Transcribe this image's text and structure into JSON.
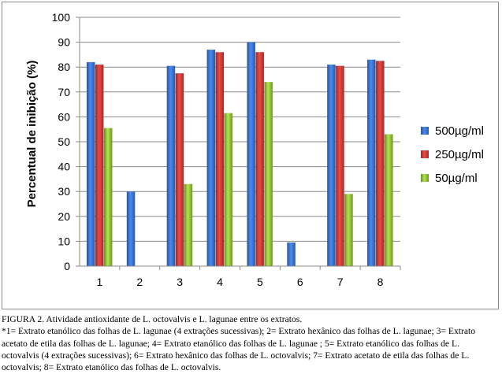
{
  "chart_data": {
    "type": "bar",
    "title": "",
    "xlabel": "",
    "ylabel": "Percentual de inibição (%)",
    "ylim": [
      0,
      100
    ],
    "yticks": [
      0,
      10,
      20,
      30,
      40,
      50,
      60,
      70,
      80,
      90,
      100
    ],
    "grid": true,
    "legend_position": "right",
    "categories": [
      "1",
      "2",
      "3",
      "4",
      "5",
      "6",
      "7",
      "8"
    ],
    "series": [
      {
        "name": "500µg/ml",
        "color": "#3a6fc4",
        "values": [
          82,
          30,
          null,
          null,
          90,
          9.5,
          81,
          83
        ]
      },
      {
        "name": "250µg/ml",
        "color": "#c03a36",
        "values": [
          81,
          null,
          77.5,
          86,
          86,
          null,
          80.5,
          82.5
        ]
      },
      {
        "name": "50µg/ml",
        "color": "#8db83a",
        "values": [
          55.5,
          null,
          33,
          61.5,
          74,
          null,
          29,
          53
        ]
      }
    ]
  },
  "fix_series_note": "",
  "caption": {
    "line1": "FIGURA 2. Atividade antioxidante de L. octovalvis e L. lagunae entre os extratos.",
    "line2": "*1= Extrato etanólico das folhas de L. lagunae (4 extrações sucessivas); 2= Extrato hexânico das folhas de L. lagunae; 3= Extrato acetato de etila das folhas de L. lagunae; 4= Extrato etanólico das folhas de L. lagunae ; 5= Extrato etanólico das folhas de L. octovalvis (4 extrações sucessivas); 6= Extrato hexânico  das folhas de L. octovalvis; 7= Extrato  acetato de etila das folhas de L. octovalvis; 8= Extrato etanólico das folhas de L. octovalvis."
  }
}
